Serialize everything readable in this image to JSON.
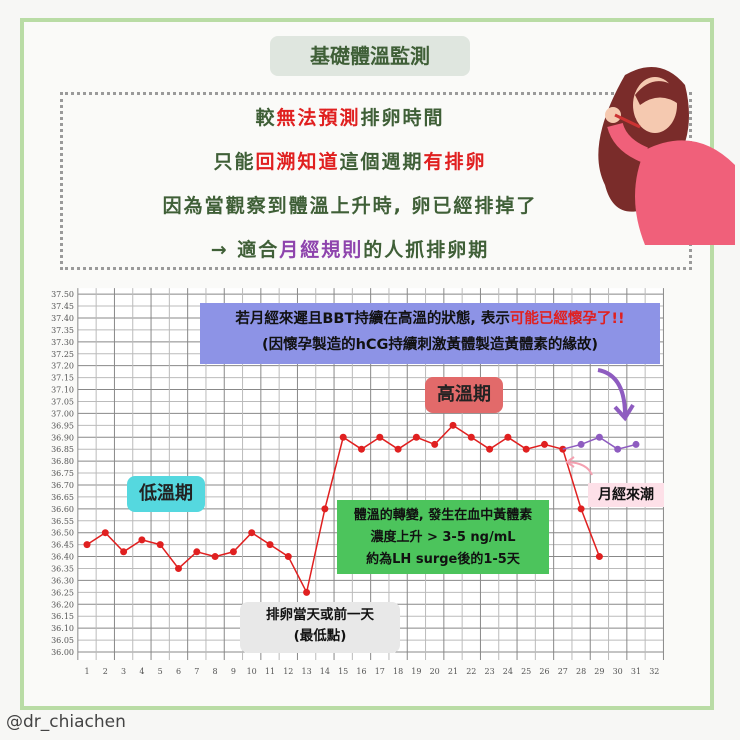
{
  "title": "基礎體溫監測",
  "intro_lines": [
    [
      {
        "t": "較",
        "c": "g"
      },
      {
        "t": "無法預測",
        "c": "r"
      },
      {
        "t": "排卵時間",
        "c": "g"
      }
    ],
    [
      {
        "t": "只能",
        "c": "g"
      },
      {
        "t": "回溯知道",
        "c": "r"
      },
      {
        "t": "這個週期",
        "c": "g"
      },
      {
        "t": "有排卵",
        "c": "r"
      }
    ],
    [
      {
        "t": "因為當觀察到體溫上升時, 卵已經排掉了",
        "c": "g"
      }
    ],
    [
      {
        "t": "→   適合",
        "c": "g"
      },
      {
        "t": "月經規則",
        "c": "p"
      },
      {
        "t": "的人抓排卵期",
        "c": "g"
      }
    ]
  ],
  "annotations": {
    "pregnancy_line1_a": "若月經來遲且BBT持續在高溫的狀態, 表示",
    "pregnancy_line1_b": "可能已經懷孕了!!",
    "pregnancy_line2": "(因懷孕製造的hCG持續刺激黃體製造黃體素的緣故)",
    "high_phase": "高溫期",
    "low_phase": "低溫期",
    "progesterone_1": "體溫的轉變, 發生在血中黃體素",
    "progesterone_2": "濃度上升 > 3-5 ng/mL",
    "progesterone_3": "約為LH surge後的1-5天",
    "ovulation_1": "排卵當天或前一天",
    "ovulation_2": "(最低點)",
    "menses": "月經來潮"
  },
  "footer": "@dr_chiachen",
  "colors": {
    "green_text": "#3f5f37",
    "red": "#e02020",
    "purple": "#8e44ad",
    "frame": "#b9dca5"
  },
  "chart_data": {
    "type": "line",
    "x": [
      1,
      2,
      3,
      4,
      5,
      6,
      7,
      8,
      9,
      10,
      11,
      12,
      13,
      14,
      15,
      16,
      17,
      18,
      19,
      20,
      21,
      22,
      23,
      24,
      25,
      26,
      27,
      28,
      29,
      30,
      31,
      32
    ],
    "ylim": [
      36.0,
      37.5
    ],
    "ytick_step": 0.05,
    "grid": true,
    "series": [
      {
        "color": "#e02020",
        "x": [
          1,
          2,
          3,
          4,
          5,
          6,
          7,
          8,
          9,
          10,
          11,
          12,
          13,
          14,
          15,
          16,
          17,
          18,
          19,
          20,
          21,
          22,
          23,
          24,
          25,
          26,
          27,
          28,
          29
        ],
        "values": [
          36.45,
          36.5,
          36.42,
          36.47,
          36.45,
          36.35,
          36.42,
          36.4,
          36.42,
          36.5,
          36.45,
          36.4,
          36.25,
          36.6,
          36.9,
          36.85,
          36.9,
          36.85,
          36.9,
          36.87,
          36.95,
          36.9,
          36.85,
          36.9,
          36.85,
          36.87,
          36.85,
          36.6,
          36.4
        ]
      },
      {
        "color": "#8e5cc0",
        "x": [
          27,
          28,
          29,
          30,
          31
        ],
        "values": [
          36.85,
          36.87,
          36.9,
          36.85,
          36.87
        ]
      }
    ]
  }
}
